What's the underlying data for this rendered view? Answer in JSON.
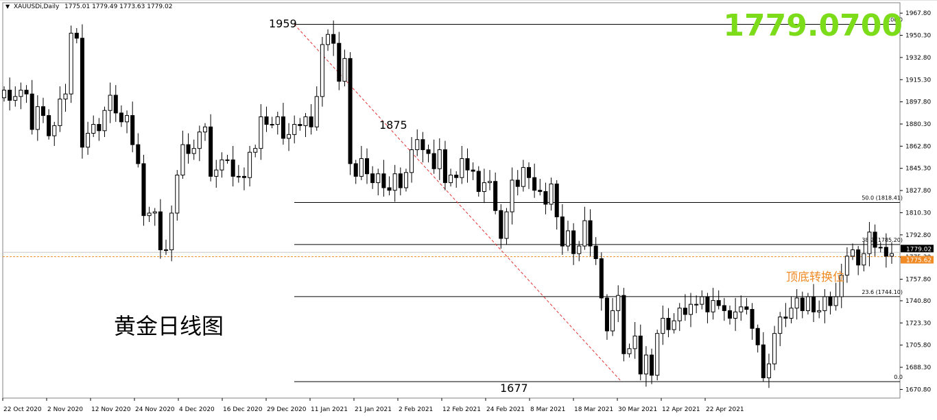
{
  "header": {
    "symbol": "XAUUSDi,Daily",
    "ohlc": "1775.01 1779.49 1773.63 1779.02"
  },
  "price_overlay": "1779.0700",
  "overlay_color": "#7cdc1a",
  "accent_color": "#f08a24",
  "annotations": {
    "peak_label": "1959",
    "mid_label": "1875",
    "low_label": "1677",
    "title_cn": "黄金日线图",
    "note_cn": "顶底转换位"
  },
  "current_prices": [
    "1779.02",
    "1775.62"
  ],
  "fib_levels": [
    {
      "label": "100.0",
      "value": 1959.0
    },
    {
      "label": "50.0  (1818.41)",
      "value": 1818.41
    },
    {
      "label": "38.2  (1785.20)",
      "value": 1785.2
    },
    {
      "label": "23.6  (1744.10)",
      "value": 1744.1
    },
    {
      "label": "0.0",
      "value": 1677.0
    }
  ],
  "chart_data": {
    "type": "candlestick",
    "title": "",
    "ylim": [
      1664,
      1976
    ],
    "y_ticks": [
      "1967.80",
      "1950.30",
      "1932.80",
      "1915.30",
      "1897.80",
      "1880.30",
      "1862.80",
      "1845.30",
      "1827.80",
      "1810.30",
      "1792.80",
      "1775.30",
      "1757.80",
      "1740.80",
      "1723.30",
      "1705.80",
      "1688.30",
      "1670.80"
    ],
    "x_ticks": [
      "22 Oct 2020",
      "2 Nov 2020",
      "12 Nov 2020",
      "24 Nov 2020",
      "4 Dec 2020",
      "16 Dec 2020",
      "29 Dec 2020",
      "11 Jan 2021",
      "21 Jan 2021",
      "2 Feb 2021",
      "12 Feb 2021",
      "24 Feb 2021",
      "8 Mar 2021",
      "18 Mar 2021",
      "30 Mar 2021",
      "12 Apr 2021",
      "22 Apr 2021"
    ],
    "closes": [
      1907,
      1899,
      1902,
      1907,
      1904,
      1876,
      1894,
      1887,
      1871,
      1879,
      1900,
      1904,
      1952,
      1948,
      1862,
      1873,
      1880,
      1875,
      1891,
      1903,
      1889,
      1882,
      1887,
      1864,
      1849,
      1808,
      1810,
      1811,
      1781,
      1781,
      1810,
      1840,
      1864,
      1857,
      1861,
      1874,
      1878,
      1839,
      1844,
      1852,
      1852,
      1839,
      1839,
      1838,
      1858,
      1861,
      1886,
      1880,
      1880,
      1886,
      1869,
      1872,
      1880,
      1879,
      1886,
      1878,
      1902,
      1943,
      1951,
      1944,
      1914,
      1932,
      1849,
      1839,
      1853,
      1841,
      1834,
      1841,
      1830,
      1828,
      1841,
      1830,
      1842,
      1860,
      1868,
      1860,
      1857,
      1845,
      1860,
      1834,
      1840,
      1838,
      1853,
      1844,
      1843,
      1827,
      1834,
      1835,
      1812,
      1790,
      1811,
      1836,
      1831,
      1846,
      1838,
      1828,
      1827,
      1817,
      1833,
      1807,
      1784,
      1796,
      1778,
      1784,
      1804,
      1784,
      1774,
      1743,
      1717,
      1733,
      1745,
      1699,
      1703,
      1713,
      1683,
      1698,
      1682,
      1715,
      1727,
      1718,
      1725,
      1735,
      1730,
      1738,
      1738,
      1744,
      1732,
      1741,
      1737,
      1733,
      1727,
      1732,
      1736,
      1734,
      1719,
      1706,
      1680,
      1691,
      1715,
      1728,
      1727,
      1735,
      1743,
      1733,
      1744,
      1732,
      1733,
      1744,
      1737,
      1744,
      1761,
      1776,
      1781,
      1769,
      1778,
      1795,
      1783,
      1783,
      1776,
      1778
    ]
  }
}
